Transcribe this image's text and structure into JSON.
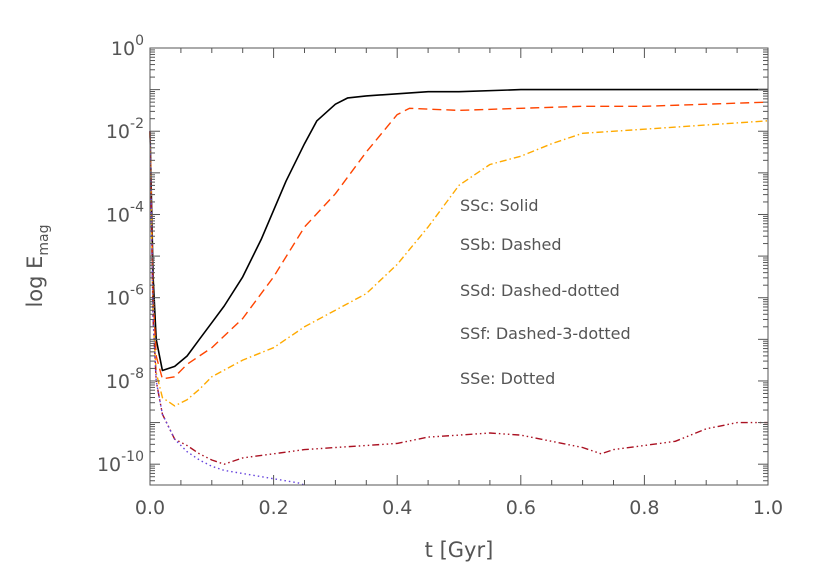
{
  "chart_data": {
    "type": "line",
    "title": "",
    "xlabel": "t [Gyr]",
    "ylabel": {
      "base": "log E",
      "subscript": "mag"
    },
    "xlim": [
      0.0,
      1.0
    ],
    "ylim_log10": [
      -10.5,
      0
    ],
    "y_scale": "log",
    "grid": false,
    "legend_placement": "center-right",
    "x_ticks": [
      {
        "value": 0.0,
        "label": "0.0"
      },
      {
        "value": 0.2,
        "label": "0.2"
      },
      {
        "value": 0.4,
        "label": "0.4"
      },
      {
        "value": 0.6,
        "label": "0.6"
      },
      {
        "value": 0.8,
        "label": "0.8"
      },
      {
        "value": 1.0,
        "label": "1.0"
      }
    ],
    "y_ticks": [
      {
        "exp": 0,
        "label_base": "10",
        "label_exp": "0"
      },
      {
        "exp": -2,
        "label_base": "10",
        "label_exp": "-2"
      },
      {
        "exp": -4,
        "label_base": "10",
        "label_exp": "-4"
      },
      {
        "exp": -6,
        "label_base": "10",
        "label_exp": "-6"
      },
      {
        "exp": -8,
        "label_base": "10",
        "label_exp": "-8"
      },
      {
        "exp": -10,
        "label_base": "10",
        "label_exp": "-10"
      }
    ],
    "legend": [
      "SSc: Solid",
      "SSb: Dashed",
      "SSd: Dashed-dotted",
      "SSf: Dashed-3-dotted",
      "SSe: Dotted"
    ],
    "series": [
      {
        "key": "SSc",
        "color": "#000000",
        "dash": "solid",
        "x": [
          0.0,
          0.005,
          0.01,
          0.02,
          0.04,
          0.06,
          0.08,
          0.1,
          0.12,
          0.15,
          0.18,
          0.2,
          0.22,
          0.25,
          0.27,
          0.3,
          0.32,
          0.35,
          0.4,
          0.45,
          0.5,
          0.6,
          0.7,
          0.8,
          0.9,
          1.0
        ],
        "log10_y": [
          -2.0,
          -5.5,
          -7.0,
          -7.75,
          -7.65,
          -7.4,
          -7.0,
          -6.6,
          -6.2,
          -5.5,
          -4.6,
          -3.9,
          -3.2,
          -2.3,
          -1.75,
          -1.35,
          -1.2,
          -1.15,
          -1.1,
          -1.05,
          -1.05,
          -1.0,
          -1.0,
          -1.0,
          -1.0,
          -1.0
        ]
      },
      {
        "key": "SSb",
        "color": "#ff4400",
        "dash": "dashed",
        "x": [
          0.0,
          0.005,
          0.01,
          0.02,
          0.04,
          0.06,
          0.08,
          0.1,
          0.15,
          0.2,
          0.25,
          0.3,
          0.35,
          0.4,
          0.42,
          0.5,
          0.6,
          0.7,
          0.8,
          0.9,
          1.0
        ],
        "log10_y": [
          -2.0,
          -6.0,
          -7.4,
          -7.95,
          -7.9,
          -7.6,
          -7.4,
          -7.2,
          -6.5,
          -5.5,
          -4.3,
          -3.5,
          -2.5,
          -1.6,
          -1.45,
          -1.5,
          -1.45,
          -1.4,
          -1.4,
          -1.35,
          -1.3
        ]
      },
      {
        "key": "SSd",
        "color": "#ffaa00",
        "dash": "dashdot",
        "x": [
          0.0,
          0.005,
          0.01,
          0.02,
          0.04,
          0.06,
          0.08,
          0.1,
          0.15,
          0.2,
          0.25,
          0.3,
          0.35,
          0.4,
          0.45,
          0.5,
          0.55,
          0.6,
          0.65,
          0.7,
          0.8,
          0.9,
          1.0
        ],
        "log10_y": [
          -2.0,
          -6.5,
          -7.8,
          -8.4,
          -8.6,
          -8.45,
          -8.2,
          -7.9,
          -7.5,
          -7.2,
          -6.7,
          -6.3,
          -5.9,
          -5.2,
          -4.3,
          -3.3,
          -2.8,
          -2.6,
          -2.3,
          -2.05,
          -1.95,
          -1.85,
          -1.75
        ]
      },
      {
        "key": "SSf",
        "color": "#aa1122",
        "dash": "dash3dot",
        "x": [
          0.0,
          0.005,
          0.01,
          0.02,
          0.04,
          0.06,
          0.08,
          0.1,
          0.12,
          0.15,
          0.2,
          0.25,
          0.3,
          0.35,
          0.4,
          0.45,
          0.5,
          0.55,
          0.6,
          0.65,
          0.7,
          0.73,
          0.75,
          0.8,
          0.85,
          0.9,
          0.95,
          1.0
        ],
        "log10_y": [
          -2.0,
          -6.5,
          -8.0,
          -8.8,
          -9.4,
          -9.55,
          -9.75,
          -9.9,
          -10.0,
          -9.85,
          -9.75,
          -9.65,
          -9.6,
          -9.55,
          -9.5,
          -9.35,
          -9.3,
          -9.25,
          -9.3,
          -9.45,
          -9.6,
          -9.75,
          -9.65,
          -9.55,
          -9.45,
          -9.15,
          -9.0,
          -9.0
        ]
      },
      {
        "key": "SSe",
        "color": "#6644dd",
        "dash": "dotted",
        "x": [
          0.0,
          0.005,
          0.01,
          0.02,
          0.04,
          0.06,
          0.08,
          0.1,
          0.12,
          0.14,
          0.16,
          0.18,
          0.2,
          0.22,
          0.24,
          0.25
        ],
        "log10_y": [
          -2.0,
          -6.5,
          -8.0,
          -8.8,
          -9.4,
          -9.7,
          -9.9,
          -10.05,
          -10.15,
          -10.2,
          -10.25,
          -10.3,
          -10.35,
          -10.4,
          -10.45,
          -10.5
        ]
      }
    ]
  }
}
